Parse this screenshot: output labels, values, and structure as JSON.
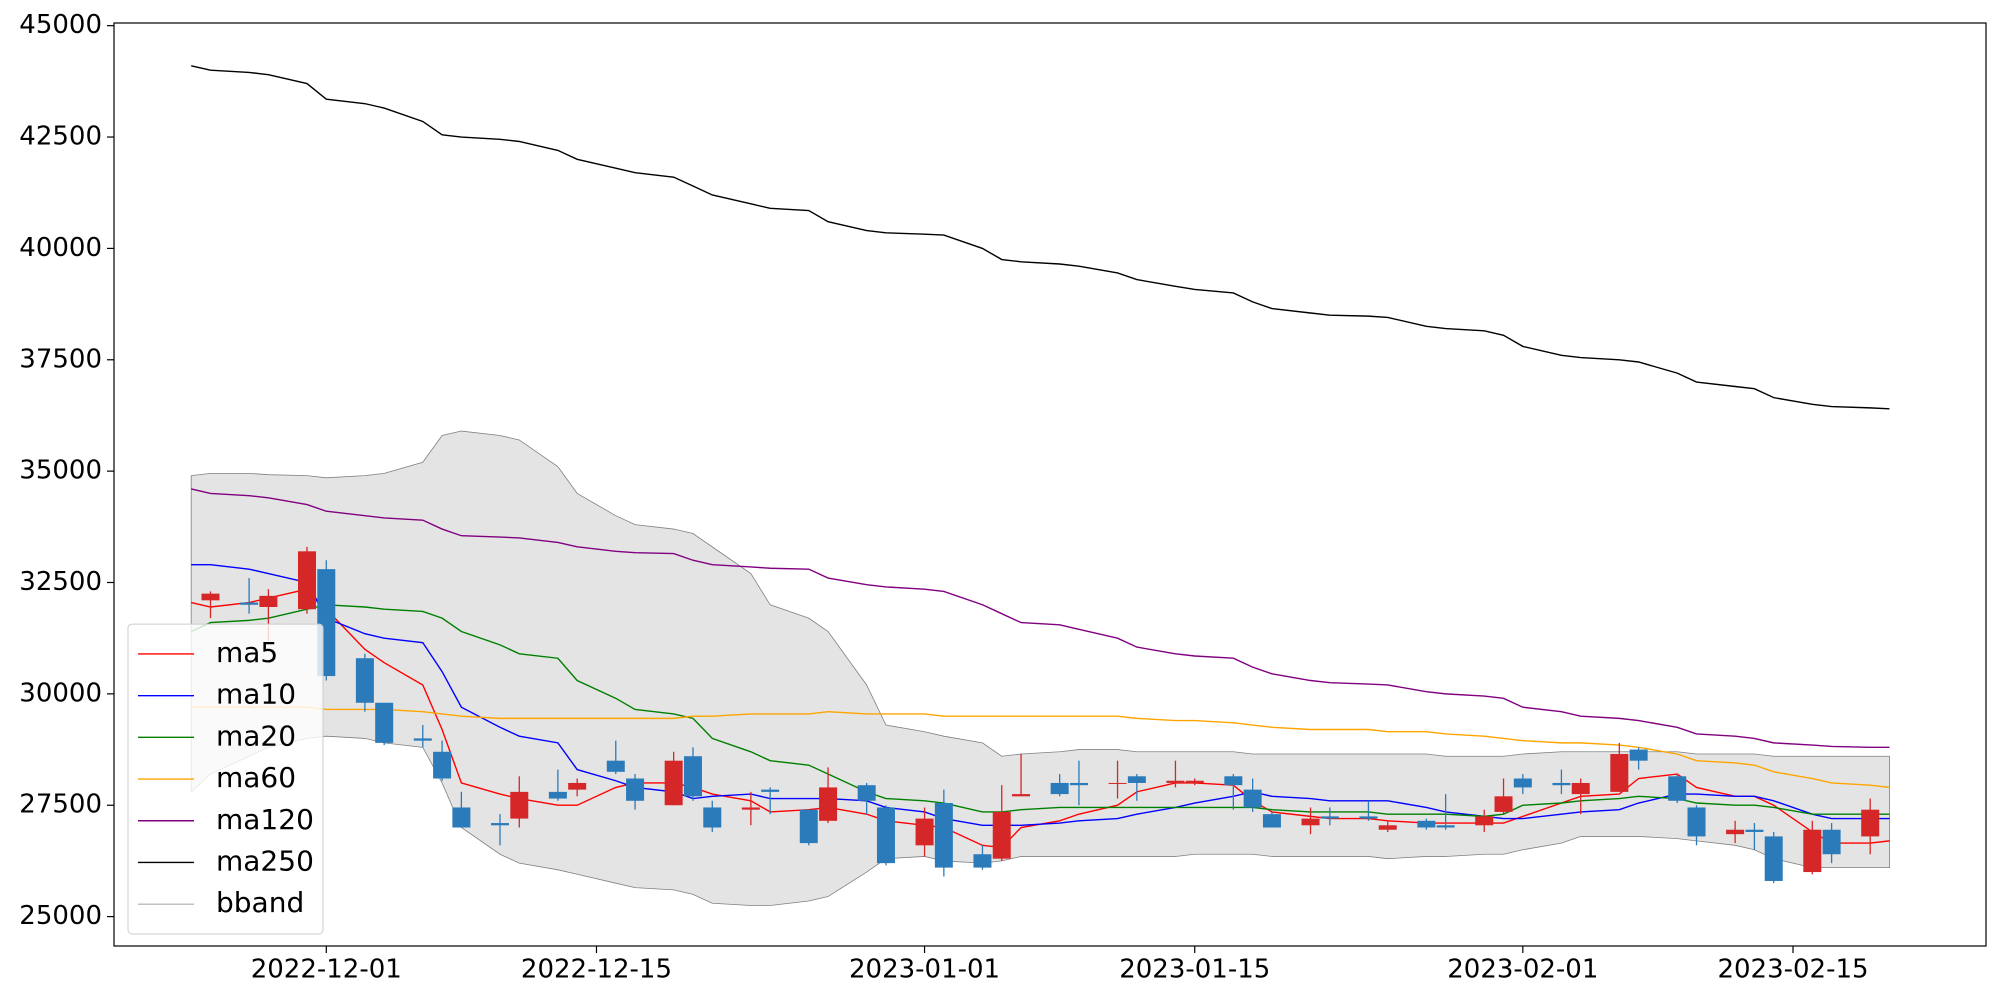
{
  "chart_data": {
    "type": "candlestick",
    "x": [
      "2022-11-24",
      "2022-11-25",
      "2022-11-27",
      "2022-11-28",
      "2022-11-30",
      "2022-12-01",
      "2022-12-03",
      "2022-12-04",
      "2022-12-06",
      "2022-12-07",
      "2022-12-08",
      "2022-12-10",
      "2022-12-11",
      "2022-12-13",
      "2022-12-14",
      "2022-12-16",
      "2022-12-17",
      "2022-12-19",
      "2022-12-20",
      "2022-12-21",
      "2022-12-23",
      "2022-12-24",
      "2022-12-26",
      "2022-12-27",
      "2022-12-29",
      "2022-12-30",
      "2023-01-01",
      "2023-01-02",
      "2023-01-04",
      "2023-01-05",
      "2023-01-06",
      "2023-01-08",
      "2023-01-09",
      "2023-01-11",
      "2023-01-12",
      "2023-01-14",
      "2023-01-15",
      "2023-01-17",
      "2023-01-18",
      "2023-01-19",
      "2023-01-21",
      "2023-01-22",
      "2023-01-24",
      "2023-01-25",
      "2023-01-27",
      "2023-01-28",
      "2023-01-30",
      "2023-01-31",
      "2023-02-01",
      "2023-02-03",
      "2023-02-04",
      "2023-02-06",
      "2023-02-07",
      "2023-02-09",
      "2023-02-10",
      "2023-02-12",
      "2023-02-13",
      "2023-02-14",
      "2023-02-16",
      "2023-02-17",
      "2023-02-19",
      "2023-02-20"
    ],
    "candles": {
      "up_color": "#d62728",
      "down_color": "#2b7bba",
      "open": [
        null,
        32100,
        32050,
        31950,
        31900,
        32800,
        30800,
        29800,
        29000,
        28700,
        27450,
        27100,
        27200,
        27800,
        27850,
        28500,
        28100,
        27500,
        28600,
        27450,
        27400,
        27850,
        27400,
        27150,
        27950,
        27450,
        26600,
        27550,
        26400,
        26300,
        27700,
        28000,
        28000,
        28000,
        28150,
        28000,
        28000,
        28150,
        27850,
        27300,
        27050,
        27250,
        27250,
        26950,
        27150,
        27050,
        27050,
        27350,
        28100,
        28000,
        27750,
        27800,
        28750,
        28150,
        27450,
        26850,
        26950,
        26800,
        26000,
        26950,
        26800,
        null
      ],
      "high": [
        null,
        32300,
        32600,
        32350,
        33300,
        33000,
        30900,
        29800,
        29300,
        28950,
        27800,
        27300,
        28150,
        28300,
        28100,
        28950,
        28200,
        28700,
        28800,
        27600,
        27800,
        27900,
        27400,
        28350,
        28000,
        27500,
        27450,
        27850,
        26600,
        27950,
        28650,
        28200,
        28500,
        28500,
        28200,
        28500,
        28100,
        28200,
        28100,
        27350,
        27450,
        27450,
        27600,
        27150,
        27200,
        27750,
        27400,
        28100,
        28200,
        28300,
        28100,
        28900,
        28800,
        28200,
        27500,
        27150,
        27100,
        26900,
        27150,
        27100,
        27650,
        null
      ],
      "low": [
        null,
        31700,
        31800,
        31200,
        31800,
        30300,
        29600,
        28850,
        28800,
        28050,
        27000,
        26600,
        27000,
        27600,
        27700,
        28200,
        27400,
        27500,
        27600,
        26900,
        27050,
        27300,
        26600,
        27100,
        27300,
        26150,
        26350,
        25900,
        26050,
        26250,
        27700,
        27700,
        27500,
        27650,
        27600,
        27900,
        27950,
        27400,
        27350,
        27000,
        26850,
        27050,
        27150,
        26900,
        26950,
        26950,
        26900,
        27300,
        27750,
        27750,
        27300,
        27800,
        28300,
        27550,
        26600,
        26650,
        26500,
        25750,
        25950,
        26200,
        26400,
        null
      ],
      "close": [
        null,
        32250,
        32000,
        32200,
        33200,
        30400,
        29800,
        28900,
        28950,
        28100,
        27000,
        27050,
        27800,
        27650,
        28000,
        28250,
        27600,
        28500,
        27700,
        27000,
        27450,
        27800,
        26650,
        27900,
        27600,
        26200,
        27200,
        26100,
        26100,
        27350,
        27750,
        27750,
        27950,
        28000,
        28000,
        28050,
        28050,
        27950,
        27450,
        27000,
        27200,
        27200,
        27200,
        27050,
        27000,
        27000,
        27250,
        27700,
        27900,
        27950,
        28000,
        28650,
        28500,
        27600,
        26800,
        26950,
        26900,
        25800,
        26950,
        26400,
        27400,
        null
      ]
    },
    "series": [
      {
        "name": "ma5",
        "color": "#ff0000",
        "values": [
          32050,
          31950,
          32050,
          32150,
          32350,
          31900,
          31000,
          30700,
          30200,
          29200,
          28000,
          27750,
          27650,
          27500,
          27500,
          27900,
          28000,
          28000,
          27900,
          27750,
          27600,
          27350,
          27400,
          27450,
          27300,
          27150,
          27050,
          27000,
          26600,
          26550,
          27000,
          27150,
          27300,
          27500,
          27800,
          28000,
          28000,
          27950,
          27600,
          27350,
          27250,
          27200,
          27200,
          27150,
          27100,
          27100,
          27100,
          27100,
          27250,
          27550,
          27700,
          27750,
          28100,
          28200,
          27900,
          27700,
          27700,
          27500,
          26900,
          26650,
          26650,
          26700
        ]
      },
      {
        "name": "ma10",
        "color": "#0000ff",
        "values": [
          32900,
          32900,
          32800,
          32700,
          32500,
          31700,
          31350,
          31250,
          31150,
          30500,
          29700,
          29250,
          29050,
          28900,
          28300,
          28050,
          27900,
          27800,
          27650,
          27700,
          27750,
          27650,
          27650,
          27650,
          27600,
          27450,
          27350,
          27200,
          27050,
          27050,
          27050,
          27100,
          27150,
          27200,
          27300,
          27450,
          27550,
          27700,
          27800,
          27700,
          27650,
          27600,
          27600,
          27600,
          27450,
          27350,
          27250,
          27200,
          27200,
          27300,
          27350,
          27400,
          27550,
          27750,
          27750,
          27700,
          27700,
          27600,
          27300,
          27200,
          27200,
          27200
        ]
      },
      {
        "name": "ma20",
        "color": "#008000",
        "values": [
          31400,
          31600,
          31650,
          31700,
          31900,
          32000,
          31950,
          31900,
          31850,
          31700,
          31400,
          31100,
          30900,
          30800,
          30300,
          29900,
          29650,
          29550,
          29450,
          29000,
          28700,
          28500,
          28400,
          28200,
          27800,
          27650,
          27600,
          27550,
          27350,
          27350,
          27400,
          27450,
          27450,
          27450,
          27450,
          27450,
          27450,
          27450,
          27450,
          27400,
          27350,
          27350,
          27350,
          27300,
          27300,
          27300,
          27250,
          27300,
          27500,
          27550,
          27600,
          27650,
          27700,
          27650,
          27550,
          27500,
          27500,
          27450,
          27300,
          27300,
          27300,
          27300
        ]
      },
      {
        "name": "ma60",
        "color": "#ffa500",
        "values": [
          29700,
          29700,
          29700,
          29700,
          29700,
          29650,
          29650,
          29650,
          29600,
          29550,
          29500,
          29450,
          29450,
          29450,
          29450,
          29450,
          29450,
          29450,
          29500,
          29500,
          29550,
          29550,
          29550,
          29600,
          29550,
          29550,
          29550,
          29500,
          29500,
          29500,
          29500,
          29500,
          29500,
          29500,
          29450,
          29400,
          29400,
          29350,
          29300,
          29250,
          29200,
          29200,
          29200,
          29150,
          29150,
          29100,
          29050,
          29000,
          28950,
          28900,
          28900,
          28850,
          28800,
          28650,
          28500,
          28450,
          28400,
          28250,
          28100,
          28000,
          27950,
          27900
        ]
      },
      {
        "name": "ma120",
        "color": "#800080",
        "values": [
          34600,
          34500,
          34450,
          34400,
          34250,
          34100,
          34000,
          33950,
          33900,
          33700,
          33550,
          33520,
          33500,
          33400,
          33300,
          33200,
          33170,
          33150,
          33000,
          32900,
          32850,
          32820,
          32800,
          32600,
          32450,
          32400,
          32350,
          32300,
          32000,
          31800,
          31600,
          31550,
          31450,
          31250,
          31050,
          30900,
          30850,
          30800,
          30600,
          30450,
          30300,
          30250,
          30220,
          30200,
          30050,
          30000,
          29950,
          29900,
          29700,
          29600,
          29500,
          29450,
          29400,
          29250,
          29100,
          29050,
          29000,
          28900,
          28850,
          28820,
          28800,
          28800
        ]
      },
      {
        "name": "ma250",
        "color": "#000000",
        "values": [
          44100,
          44000,
          43950,
          43900,
          43700,
          43350,
          43250,
          43150,
          42850,
          42550,
          42500,
          42450,
          42400,
          42200,
          42000,
          41800,
          41700,
          41600,
          41400,
          41200,
          41000,
          40900,
          40850,
          40600,
          40400,
          40350,
          40320,
          40300,
          40000,
          39750,
          39700,
          39650,
          39600,
          39450,
          39300,
          39150,
          39080,
          39000,
          38800,
          38650,
          38550,
          38500,
          38480,
          38450,
          38250,
          38200,
          38150,
          38050,
          37800,
          37600,
          37550,
          37500,
          37450,
          37200,
          37000,
          36900,
          36850,
          36650,
          36500,
          36450,
          36420,
          36400
        ]
      }
    ],
    "band": {
      "name": "bband",
      "color": "#808080",
      "fill": "#e4e4e4",
      "upper": [
        34900,
        34950,
        34950,
        34920,
        34900,
        34850,
        34900,
        34950,
        35200,
        35800,
        35900,
        35800,
        35700,
        35100,
        34500,
        34000,
        33800,
        33700,
        33600,
        33300,
        32700,
        32000,
        31700,
        31400,
        30200,
        29300,
        29150,
        29050,
        28900,
        28600,
        28650,
        28700,
        28750,
        28750,
        28700,
        28700,
        28700,
        28700,
        28650,
        28650,
        28650,
        28650,
        28650,
        28650,
        28650,
        28600,
        28600,
        28600,
        28650,
        28700,
        28700,
        28700,
        28700,
        28700,
        28650,
        28650,
        28650,
        28600,
        28600,
        28600,
        28600,
        28600
      ],
      "lower": [
        27800,
        28200,
        28600,
        28800,
        29000,
        29050,
        29000,
        28900,
        28800,
        28000,
        27000,
        26400,
        26200,
        26050,
        25950,
        25750,
        25650,
        25600,
        25500,
        25300,
        25250,
        25250,
        25350,
        25450,
        26000,
        26300,
        26350,
        26250,
        26200,
        26250,
        26350,
        26350,
        26350,
        26350,
        26350,
        26350,
        26400,
        26400,
        26400,
        26350,
        26350,
        26350,
        26350,
        26300,
        26350,
        26350,
        26400,
        26400,
        26500,
        26650,
        26800,
        26800,
        26800,
        26750,
        26700,
        26600,
        26500,
        26300,
        26100,
        26100,
        26100,
        26100
      ]
    },
    "xlim": [
      "2022-11-20",
      "2023-02-25"
    ],
    "xticks": [
      "2022-12-01",
      "2022-12-15",
      "2023-01-01",
      "2023-01-15",
      "2023-02-01",
      "2023-02-15"
    ],
    "ylim": [
      24340,
      45060
    ],
    "yticks": [
      25000,
      27500,
      30000,
      32500,
      35000,
      37500,
      40000,
      42500,
      45000
    ],
    "legend": "lower left"
  }
}
